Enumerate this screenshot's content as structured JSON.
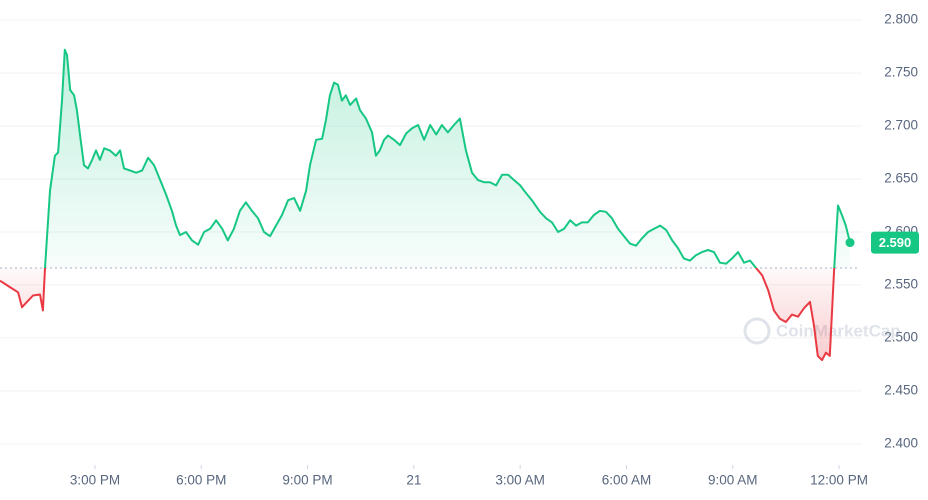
{
  "chart_data": {
    "type": "line",
    "watermark": "CoinMarketCap",
    "baseline": 2.566,
    "price_tag": {
      "value": 2.59,
      "label": "2.590"
    },
    "up_color": "#16c784",
    "down_color": "#ea3943",
    "grid": true,
    "xlim": [
      12.32,
      36.45
    ],
    "xticks": [
      {
        "value": 15,
        "label": "3:00 PM"
      },
      {
        "value": 18,
        "label": "6:00 PM"
      },
      {
        "value": 21,
        "label": "9:00 PM"
      },
      {
        "value": 24,
        "label": "21"
      },
      {
        "value": 27,
        "label": "3:00 AM"
      },
      {
        "value": 30,
        "label": "6:00 AM"
      },
      {
        "value": 33,
        "label": "9:00 AM"
      },
      {
        "value": 36,
        "label": "12:00 PM"
      }
    ],
    "ylim": [
      2.38,
      2.819
    ],
    "yticks": [
      {
        "value": 2.4,
        "label": "2.400"
      },
      {
        "value": 2.45,
        "label": "2.450"
      },
      {
        "value": 2.5,
        "label": "2.500"
      },
      {
        "value": 2.55,
        "label": "2.550"
      },
      {
        "value": 2.6,
        "label": "2.600"
      },
      {
        "value": 2.65,
        "label": "2.650"
      },
      {
        "value": 2.7,
        "label": "2.700"
      },
      {
        "value": 2.75,
        "label": "2.750"
      },
      {
        "value": 2.8,
        "label": "2.800"
      }
    ],
    "x": [
      12.32,
      12.6,
      12.83,
      12.94,
      13.11,
      13.25,
      13.45,
      13.53,
      13.59,
      13.73,
      13.87,
      13.96,
      14.07,
      14.15,
      14.21,
      14.3,
      14.41,
      14.49,
      14.58,
      14.69,
      14.8,
      14.92,
      15.03,
      15.14,
      15.26,
      15.42,
      15.59,
      15.71,
      15.82,
      15.99,
      16.16,
      16.33,
      16.5,
      16.67,
      16.84,
      17.01,
      17.17,
      17.29,
      17.4,
      17.57,
      17.74,
      17.91,
      18.08,
      18.25,
      18.42,
      18.59,
      18.75,
      18.92,
      19.09,
      19.26,
      19.43,
      19.6,
      19.77,
      19.94,
      20.11,
      20.28,
      20.45,
      20.62,
      20.79,
      20.96,
      21.07,
      21.24,
      21.41,
      21.52,
      21.63,
      21.75,
      21.86,
      21.97,
      22.08,
      22.2,
      22.37,
      22.48,
      22.65,
      22.82,
      22.93,
      23.04,
      23.16,
      23.27,
      23.44,
      23.61,
      23.78,
      23.95,
      24.12,
      24.29,
      24.46,
      24.63,
      24.79,
      24.96,
      25.13,
      25.3,
      25.47,
      25.64,
      25.81,
      25.98,
      26.15,
      26.32,
      26.49,
      26.66,
      26.83,
      27.0,
      27.16,
      27.33,
      27.56,
      27.73,
      27.9,
      28.07,
      28.24,
      28.41,
      28.58,
      28.74,
      28.91,
      29.08,
      29.25,
      29.42,
      29.59,
      29.76,
      29.93,
      30.1,
      30.27,
      30.44,
      30.61,
      30.78,
      30.95,
      31.12,
      31.29,
      31.45,
      31.62,
      31.79,
      31.96,
      32.13,
      32.3,
      32.47,
      32.64,
      32.81,
      32.98,
      33.15,
      33.32,
      33.49,
      33.66,
      33.83,
      34.0,
      34.16,
      34.33,
      34.5,
      34.67,
      34.84,
      35.01,
      35.18,
      35.29,
      35.4,
      35.52,
      35.63,
      35.74,
      35.86,
      35.97,
      36.08,
      36.19,
      36.31
    ],
    "values": [
      2.554,
      2.548,
      2.543,
      2.529,
      2.535,
      2.54,
      2.541,
      2.526,
      2.566,
      2.639,
      2.672,
      2.675,
      2.724,
      2.772,
      2.767,
      2.734,
      2.729,
      2.715,
      2.691,
      2.663,
      2.66,
      2.668,
      2.677,
      2.668,
      2.679,
      2.677,
      2.672,
      2.677,
      2.66,
      2.658,
      2.656,
      2.658,
      2.67,
      2.663,
      2.649,
      2.635,
      2.62,
      2.606,
      2.597,
      2.6,
      2.592,
      2.588,
      2.6,
      2.603,
      2.611,
      2.603,
      2.592,
      2.603,
      2.62,
      2.628,
      2.62,
      2.613,
      2.6,
      2.596,
      2.606,
      2.616,
      2.63,
      2.632,
      2.62,
      2.639,
      2.663,
      2.687,
      2.688,
      2.706,
      2.729,
      2.741,
      2.739,
      2.724,
      2.729,
      2.72,
      2.726,
      2.715,
      2.707,
      2.694,
      2.672,
      2.677,
      2.687,
      2.691,
      2.687,
      2.682,
      2.693,
      2.698,
      2.701,
      2.687,
      2.701,
      2.692,
      2.701,
      2.694,
      2.701,
      2.707,
      2.677,
      2.656,
      2.649,
      2.647,
      2.647,
      2.644,
      2.654,
      2.654,
      2.649,
      2.644,
      2.637,
      2.63,
      2.619,
      2.613,
      2.609,
      2.6,
      2.603,
      2.611,
      2.606,
      2.609,
      2.609,
      2.616,
      2.62,
      2.619,
      2.613,
      2.603,
      2.596,
      2.589,
      2.587,
      2.594,
      2.6,
      2.603,
      2.606,
      2.602,
      2.592,
      2.585,
      2.575,
      2.573,
      2.578,
      2.581,
      2.583,
      2.581,
      2.571,
      2.57,
      2.575,
      2.581,
      2.571,
      2.573,
      2.566,
      2.559,
      2.545,
      2.526,
      2.518,
      2.515,
      2.522,
      2.52,
      2.528,
      2.534,
      2.512,
      2.483,
      2.479,
      2.486,
      2.483,
      2.564,
      2.625,
      2.616,
      2.606,
      2.59
    ]
  }
}
